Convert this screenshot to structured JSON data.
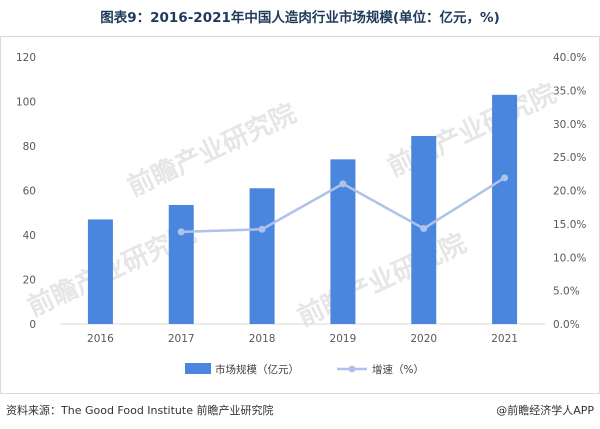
{
  "title": "图表9：2016-2021年中国人造肉行业市场规模(单位：亿元，%)",
  "watermark": "前瞻产业研究院",
  "chart_data": {
    "type": "bar",
    "categories": [
      "2016",
      "2017",
      "2018",
      "2019",
      "2020",
      "2021"
    ],
    "series": [
      {
        "name": "市场规模（亿元）",
        "type": "bar",
        "axis": "left",
        "values": [
          47,
          53.5,
          61,
          74,
          84.5,
          103
        ]
      },
      {
        "name": "增速（%）",
        "type": "line",
        "axis": "right",
        "values": [
          null,
          13.8,
          14.2,
          21.0,
          14.3,
          21.9
        ]
      }
    ],
    "left_axis": {
      "ylim": [
        0,
        120
      ],
      "ticks": [
        "0",
        "20",
        "40",
        "60",
        "80",
        "100",
        "120"
      ]
    },
    "right_axis": {
      "ylim": [
        0,
        40
      ],
      "ticks": [
        "0.0%",
        "5.0%",
        "10.0%",
        "15.0%",
        "20.0%",
        "25.0%",
        "30.0%",
        "35.0%",
        "40.0%"
      ]
    },
    "grid": false,
    "legend": "bottom",
    "colors": {
      "bar": "#4a86dd",
      "line": "#aec2ea"
    }
  },
  "footer": {
    "source": "资料来源：The Good Food Institute 前瞻产业研究院",
    "credit": "@前瞻经济学人APP"
  }
}
